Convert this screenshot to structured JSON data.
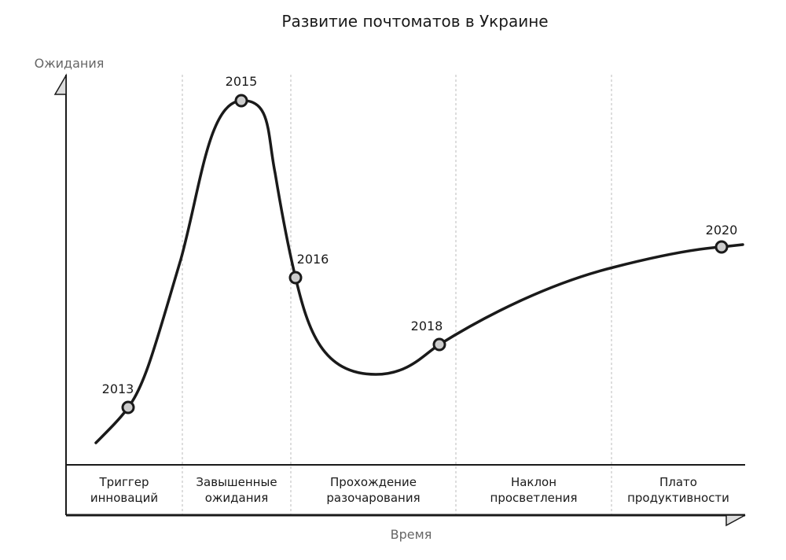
{
  "chart_data": {
    "type": "line",
    "title": "Развитие почтоматов в Украине",
    "ylabel": "Ожидания",
    "xlabel": "Время",
    "grid": false,
    "legend": "none",
    "phases": [
      {
        "line1": "Триггер",
        "line2": "инноваций"
      },
      {
        "line1": "Завышенные",
        "line2": "ожидания"
      },
      {
        "line1": "Прохождение",
        "line2": "разочарования"
      },
      {
        "line1": "Наклон",
        "line2": "просветления"
      },
      {
        "line1": "Плато",
        "line2": "продуктивности"
      }
    ],
    "points": [
      {
        "label": "2013",
        "phase": "Триггер инноваций"
      },
      {
        "label": "2015",
        "phase": "Завышенные ожидания"
      },
      {
        "label": "2016",
        "phase": "Завышенные ожидания"
      },
      {
        "label": "2018",
        "phase": "Прохождение разочарования"
      },
      {
        "label": "2020",
        "phase": "Плато продуктивности"
      }
    ]
  },
  "colors": {
    "line": "#1a1a1a",
    "marker_fill": "#cccccc",
    "divider": "#bbbbbb",
    "axis_label": "#666666"
  }
}
